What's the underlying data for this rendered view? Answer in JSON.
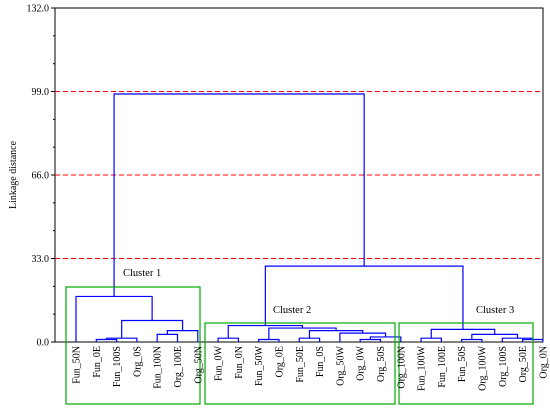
{
  "chart_data": {
    "type": "dendrogram",
    "ylabel": "Linkage distance",
    "ylim": [
      0,
      132
    ],
    "yticks": [
      "0.0",
      "33.0",
      "66.0",
      "99.0",
      "132.0"
    ],
    "reference_lines": [
      33,
      66,
      99
    ],
    "reference_line_color": "#ff0000",
    "link_color": "#0000ff",
    "cluster_box_color": "#00aa00",
    "leaves": [
      "Fun_50N",
      "Fun_0E",
      "Fun_100S",
      "Org_0S",
      "Fun_100N",
      "Org_100E",
      "Org_50N",
      "Fun_0W",
      "Fun_0N",
      "Fun_50W",
      "Org_0E",
      "Fun_50E",
      "Fun_0S",
      "Org_50W",
      "Org_0W",
      "Org_50S",
      "Org_100N",
      "Fun_100W",
      "Fun_100E",
      "Fun_50S",
      "Org_100W",
      "Org_100S",
      "Org_50E",
      "Org_0N"
    ],
    "merges": [
      {
        "a": {
          "leaf": 1
        },
        "b": {
          "leaf": 2
        },
        "h": 1
      },
      {
        "a": {
          "node": 0
        },
        "b": {
          "leaf": 3
        },
        "h": 1.5
      },
      {
        "a": {
          "leaf": 4
        },
        "b": {
          "leaf": 5
        },
        "h": 3
      },
      {
        "a": {
          "node": 2
        },
        "b": {
          "leaf": 6
        },
        "h": 4.5
      },
      {
        "a": {
          "node": 1
        },
        "b": {
          "node": 3
        },
        "h": 8.5
      },
      {
        "a": {
          "leaf": 0
        },
        "b": {
          "node": 4
        },
        "h": 18
      },
      {
        "a": {
          "leaf": 7
        },
        "b": {
          "leaf": 8
        },
        "h": 1.5
      },
      {
        "a": {
          "leaf": 9
        },
        "b": {
          "leaf": 10
        },
        "h": 1
      },
      {
        "a": {
          "leaf": 11
        },
        "b": {
          "leaf": 12
        },
        "h": 1.5
      },
      {
        "a": {
          "leaf": 14
        },
        "b": {
          "leaf": 15
        },
        "h": 1
      },
      {
        "a": {
          "node": 9
        },
        "b": {
          "leaf": 16
        },
        "h": 2
      },
      {
        "a": {
          "leaf": 13
        },
        "b": {
          "node": 10
        },
        "h": 3.5
      },
      {
        "a": {
          "node": 8
        },
        "b": {
          "node": 11
        },
        "h": 4.5
      },
      {
        "a": {
          "node": 7
        },
        "b": {
          "node": 12
        },
        "h": 5.5
      },
      {
        "a": {
          "node": 6
        },
        "b": {
          "node": 13
        },
        "h": 6.5
      },
      {
        "a": {
          "leaf": 17
        },
        "b": {
          "leaf": 18
        },
        "h": 1.5
      },
      {
        "a": {
          "leaf": 19
        },
        "b": {
          "leaf": 20
        },
        "h": 1
      },
      {
        "a": {
          "leaf": 22
        },
        "b": {
          "leaf": 23
        },
        "h": 1
      },
      {
        "a": {
          "leaf": 21
        },
        "b": {
          "node": 17
        },
        "h": 1.5
      },
      {
        "a": {
          "node": 16
        },
        "b": {
          "node": 18
        },
        "h": 3
      },
      {
        "a": {
          "node": 15
        },
        "b": {
          "node": 19
        },
        "h": 5
      },
      {
        "a": {
          "node": 14
        },
        "b": {
          "node": 20
        },
        "h": 30
      },
      {
        "a": {
          "node": 5
        },
        "b": {
          "node": 21
        },
        "h": 98
      }
    ],
    "clusters": [
      {
        "label": "Cluster 1",
        "first_leaf": 0,
        "last_leaf": 6
      },
      {
        "label": "Cluster 2",
        "first_leaf": 7,
        "last_leaf": 16
      },
      {
        "label": "Cluster 3",
        "first_leaf": 17,
        "last_leaf": 23
      }
    ]
  }
}
